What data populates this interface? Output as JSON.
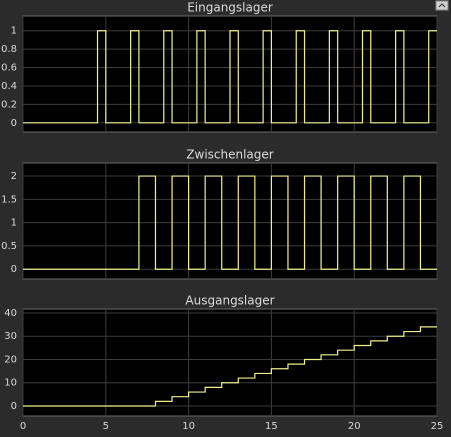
{
  "chart_data": [
    {
      "type": "line",
      "title": "Eingangslager",
      "x": [
        0,
        4.5,
        4.5,
        5,
        5,
        6.5,
        6.5,
        7,
        7,
        8.5,
        8.5,
        9,
        9,
        10.5,
        10.5,
        11,
        11,
        12.5,
        12.5,
        13,
        13,
        14.5,
        14.5,
        15,
        15,
        16.5,
        16.5,
        17,
        17,
        18.5,
        18.5,
        19,
        19,
        20.5,
        20.5,
        21,
        21,
        22.5,
        22.5,
        23,
        23,
        24.5,
        24.5,
        25
      ],
      "values": [
        0,
        0,
        1,
        1,
        0,
        0,
        1,
        1,
        0,
        0,
        1,
        1,
        0,
        0,
        1,
        1,
        0,
        0,
        1,
        1,
        0,
        0,
        1,
        1,
        0,
        0,
        1,
        1,
        0,
        0,
        1,
        1,
        0,
        0,
        1,
        1,
        0,
        0,
        1,
        1,
        0,
        0,
        1,
        1
      ],
      "color": "#f0f08c",
      "xlim": [
        0,
        25
      ],
      "xticks": [
        0,
        5,
        10,
        15,
        20,
        25
      ],
      "show_xtick_labels": false,
      "ylim": [
        -0.1,
        1.16
      ],
      "yticks": [
        0,
        0.2,
        0.4,
        0.6,
        0.8,
        1
      ],
      "grid": true
    },
    {
      "type": "line",
      "title": "Zwischenlager",
      "x": [
        0,
        7,
        7,
        8,
        8,
        9,
        9,
        10,
        10,
        11,
        11,
        12,
        12,
        13,
        13,
        14,
        14,
        15,
        15,
        16,
        16,
        17,
        17,
        18,
        18,
        19,
        19,
        20,
        20,
        21,
        21,
        22,
        22,
        23,
        23,
        24,
        24,
        25
      ],
      "values": [
        0,
        0,
        2,
        2,
        0,
        0,
        2,
        2,
        0,
        0,
        2,
        2,
        0,
        0,
        2,
        2,
        0,
        0,
        2,
        2,
        0,
        0,
        2,
        2,
        0,
        0,
        2,
        2,
        0,
        0,
        2,
        2,
        0,
        0,
        2,
        2,
        0,
        0
      ],
      "color": "#f0f08c",
      "xlim": [
        0,
        25
      ],
      "xticks": [
        0,
        5,
        10,
        15,
        20,
        25
      ],
      "show_xtick_labels": false,
      "ylim": [
        -0.21,
        2.28
      ],
      "yticks": [
        0,
        0.5,
        1,
        1.5,
        2
      ],
      "grid": true
    },
    {
      "type": "line",
      "title": "Ausgangslager",
      "x": [
        0,
        8,
        8,
        9,
        9,
        10,
        10,
        11,
        11,
        12,
        12,
        13,
        13,
        14,
        14,
        15,
        15,
        16,
        16,
        17,
        17,
        18,
        18,
        19,
        19,
        20,
        20,
        21,
        21,
        22,
        22,
        23,
        23,
        24,
        24,
        25
      ],
      "values": [
        0,
        0,
        2,
        2,
        4,
        4,
        6,
        6,
        8,
        8,
        10,
        10,
        12,
        12,
        14,
        14,
        16,
        16,
        18,
        18,
        20,
        20,
        22,
        22,
        24,
        24,
        26,
        26,
        28,
        28,
        30,
        30,
        32,
        32,
        34,
        34
      ],
      "color": "#f0f08c",
      "xlim": [
        0,
        25
      ],
      "xticks": [
        0,
        5,
        10,
        15,
        20,
        25
      ],
      "show_xtick_labels": true,
      "ylim": [
        -4.3,
        41.7
      ],
      "yticks": [
        0,
        10,
        20,
        30,
        40
      ],
      "grid": true
    }
  ]
}
